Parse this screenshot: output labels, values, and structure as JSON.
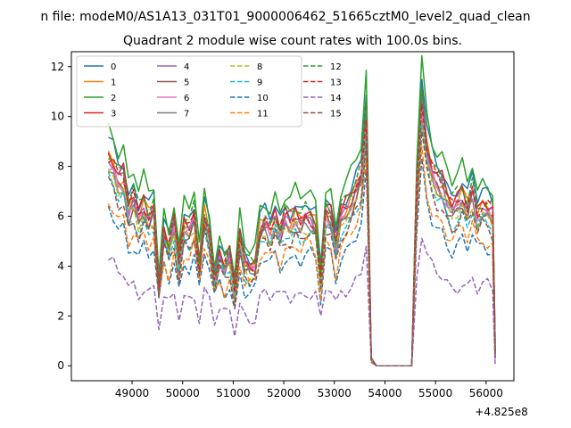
{
  "figure": {
    "suptitle": "n file: modeM0/AS1A13_031T01_9000006462_51665cztM0_level2_quad_clean",
    "background": "#ffffff"
  },
  "chart_data": {
    "type": "line",
    "title": "Quadrant 2 module wise count rates with 100.0s bins.",
    "xlabel": "",
    "ylabel": "",
    "xlim": [
      47800,
      56550
    ],
    "ylim": [
      -0.6,
      12.6
    ],
    "x_offset_label": "+4.825e8",
    "xticks": [
      49000,
      50000,
      51000,
      52000,
      53000,
      54000,
      55000,
      56000
    ],
    "xtick_labels": [
      "49000",
      "50000",
      "51000",
      "52000",
      "53000",
      "54000",
      "55000",
      "56000"
    ],
    "yticks": [
      0,
      2,
      4,
      6,
      8,
      10,
      12
    ],
    "ytick_labels": [
      "0",
      "2",
      "4",
      "6",
      "8",
      "10",
      "12"
    ],
    "grid": false,
    "legend": {
      "placement": "top-left",
      "columns": 4
    },
    "x_sample": {
      "start": 48530,
      "step": 100,
      "count": 78,
      "note_gap": "flat near zero between 53800 and 54500"
    },
    "series": [
      {
        "name": "0",
        "color": "#1f77b4",
        "style": "solid",
        "base": 5.7,
        "offset": 0.3
      },
      {
        "name": "1",
        "color": "#ff7f0e",
        "style": "solid",
        "base": 5.3,
        "offset": 0.0
      },
      {
        "name": "2",
        "color": "#2ca02c",
        "style": "solid",
        "base": 6.1,
        "offset": 0.5
      },
      {
        "name": "3",
        "color": "#d62728",
        "style": "solid",
        "base": 5.4,
        "offset": 0.1
      },
      {
        "name": "4",
        "color": "#9467bd",
        "style": "solid",
        "base": 5.2,
        "offset": -0.1
      },
      {
        "name": "5",
        "color": "#8c564b",
        "style": "solid",
        "base": 5.0,
        "offset": -0.2
      },
      {
        "name": "6",
        "color": "#e377c2",
        "style": "solid",
        "base": 5.1,
        "offset": -0.1
      },
      {
        "name": "7",
        "color": "#7f7f7f",
        "style": "solid",
        "base": 5.0,
        "offset": -0.3
      },
      {
        "name": "8",
        "color": "#bcbd22",
        "style": "dashed",
        "base": 4.9,
        "offset": -0.4
      },
      {
        "name": "9",
        "color": "#17becf",
        "style": "dashed",
        "base": 4.7,
        "offset": -0.5
      },
      {
        "name": "10",
        "color": "#1f77b4",
        "style": "dashed",
        "base": 3.9,
        "offset": -1.0
      },
      {
        "name": "11",
        "color": "#ff7f0e",
        "style": "dashed",
        "base": 4.2,
        "offset": -0.8
      },
      {
        "name": "12",
        "color": "#2ca02c",
        "style": "dashed",
        "base": 5.5,
        "offset": 0.2
      },
      {
        "name": "13",
        "color": "#d62728",
        "style": "dashed",
        "base": 5.3,
        "offset": 0.0
      },
      {
        "name": "14",
        "color": "#9467bd",
        "style": "dashed",
        "base": 2.6,
        "offset": -2.2
      },
      {
        "name": "15",
        "color": "#8c564b",
        "style": "dashed",
        "base": 4.6,
        "offset": -0.6
      }
    ],
    "profile": [
      [
        48530,
        8.7
      ],
      [
        48630,
        8.4
      ],
      [
        48730,
        7.8
      ],
      [
        48830,
        7.9
      ],
      [
        48930,
        6.6
      ],
      [
        49030,
        7.0
      ],
      [
        49130,
        6.3
      ],
      [
        49230,
        6.8
      ],
      [
        49330,
        6.2
      ],
      [
        49430,
        6.6
      ],
      [
        49530,
        3.4
      ],
      [
        49630,
        5.6
      ],
      [
        49730,
        4.9
      ],
      [
        49830,
        6.0
      ],
      [
        49930,
        4.3
      ],
      [
        50030,
        5.9
      ],
      [
        50130,
        5.7
      ],
      [
        50230,
        6.3
      ],
      [
        50330,
        4.2
      ],
      [
        50430,
        6.3
      ],
      [
        50530,
        5.5
      ],
      [
        50630,
        3.7
      ],
      [
        50730,
        4.6
      ],
      [
        50830,
        4.1
      ],
      [
        50930,
        4.6
      ],
      [
        51030,
        3.1
      ],
      [
        51130,
        5.4
      ],
      [
        51230,
        4.3
      ],
      [
        51330,
        4.1
      ],
      [
        51430,
        4.2
      ],
      [
        51530,
        5.7
      ],
      [
        51630,
        6.0
      ],
      [
        51730,
        5.7
      ],
      [
        51830,
        6.2
      ],
      [
        51930,
        5.6
      ],
      [
        52030,
        6.2
      ],
      [
        52130,
        6.0
      ],
      [
        52230,
        6.3
      ],
      [
        52330,
        6.0
      ],
      [
        52430,
        6.3
      ],
      [
        52530,
        6.2
      ],
      [
        52630,
        5.9
      ],
      [
        52730,
        3.6
      ],
      [
        52830,
        6.5
      ],
      [
        52930,
        6.3
      ],
      [
        53030,
        5.0
      ],
      [
        53130,
        6.3
      ],
      [
        53230,
        6.6
      ],
      [
        53330,
        6.9
      ],
      [
        53430,
        7.4
      ],
      [
        53530,
        8.0
      ],
      [
        53630,
        10.6
      ],
      [
        53730,
        0.3
      ],
      [
        53830,
        0.0
      ],
      [
        53930,
        0.0
      ],
      [
        54030,
        0.0
      ],
      [
        54130,
        0.0
      ],
      [
        54230,
        0.0
      ],
      [
        54330,
        0.0
      ],
      [
        54430,
        0.0
      ],
      [
        54530,
        0.0
      ],
      [
        54630,
        7.6
      ],
      [
        54730,
        11.2
      ],
      [
        54830,
        9.1
      ],
      [
        54930,
        8.2
      ],
      [
        55030,
        7.8
      ],
      [
        55130,
        7.6
      ],
      [
        55230,
        7.0
      ],
      [
        55330,
        6.6
      ],
      [
        55430,
        6.9
      ],
      [
        55530,
        7.2
      ],
      [
        55630,
        6.6
      ],
      [
        55730,
        7.4
      ],
      [
        55830,
        6.4
      ],
      [
        55930,
        6.7
      ],
      [
        56030,
        6.6
      ],
      [
        56130,
        6.4
      ],
      [
        56180,
        0.6
      ]
    ]
  }
}
